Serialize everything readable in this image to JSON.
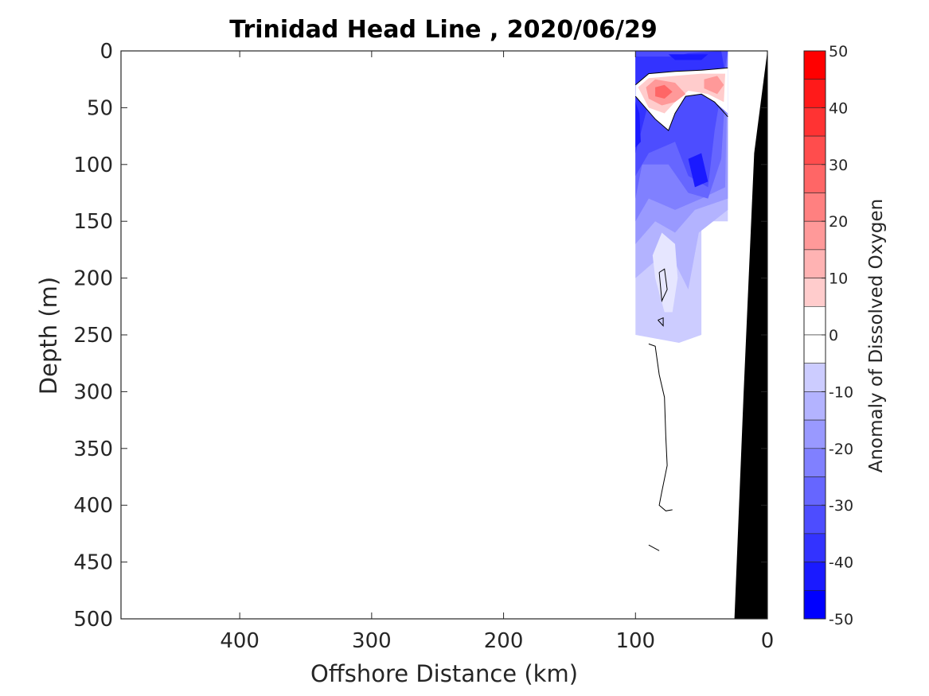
{
  "chart_data": {
    "type": "contour",
    "title": "Trinidad Head Line , 2020/06/29",
    "xlabel": "Offshore Distance (km)",
    "ylabel": "Depth (m)",
    "xlim": [
      490,
      0
    ],
    "ylim": [
      500,
      0
    ],
    "x_reversed": true,
    "y_reversed": true,
    "xticks": [
      400,
      300,
      200,
      100,
      0
    ],
    "yticks": [
      0,
      50,
      100,
      150,
      200,
      250,
      300,
      350,
      400,
      450,
      500
    ],
    "colorbar": {
      "label": "Anomaly of Dissolved Oxygen",
      "range": [
        -50,
        50
      ],
      "ticks": [
        50,
        40,
        30,
        20,
        10,
        0,
        -10,
        -20,
        -30,
        -40,
        -50
      ],
      "levels": [
        50,
        45,
        40,
        35,
        30,
        25,
        20,
        15,
        10,
        5,
        0,
        -5,
        -10,
        -15,
        -20,
        -25,
        -30,
        -35,
        -40,
        -45,
        -50
      ],
      "colors": [
        "#ff0000",
        "#ff1a1a",
        "#ff3333",
        "#ff4d4d",
        "#ff6666",
        "#ff8080",
        "#ff9999",
        "#ffb3b3",
        "#ffcccc",
        "#ffe6e6",
        "#ffffff",
        "#ffffff",
        "#e6e6ff",
        "#ccccff",
        "#b3b3ff",
        "#9999ff",
        "#8080ff",
        "#6666ff",
        "#4d4dff",
        "#3333ff",
        "#1a1aff",
        "#0000ff"
      ]
    },
    "seafloor_color": "#000000",
    "seafloor": [
      {
        "x": 0,
        "depth": 0
      },
      {
        "x": 10,
        "depth": 90
      },
      {
        "x": 18,
        "depth": 300
      },
      {
        "x": 25,
        "depth": 500
      }
    ],
    "data_coverage": [
      {
        "x": 100,
        "depth": 0
      },
      {
        "x": 30,
        "depth": 0
      },
      {
        "x": 30,
        "depth": 150
      },
      {
        "x": 50,
        "depth": 150
      },
      {
        "x": 50,
        "depth": 250
      },
      {
        "x": 67,
        "depth": 250
      },
      {
        "x": 67,
        "depth": 257
      },
      {
        "x": 100,
        "depth": 250
      }
    ],
    "regions": [
      {
        "value": -10,
        "points": [
          {
            "x": 100,
            "depth": 0
          },
          {
            "x": 30,
            "depth": 0
          },
          {
            "x": 30,
            "depth": 150
          },
          {
            "x": 50,
            "depth": 150
          },
          {
            "x": 50,
            "depth": 250
          },
          {
            "x": 67,
            "depth": 257
          },
          {
            "x": 100,
            "depth": 250
          }
        ]
      },
      {
        "value": -15,
        "points": [
          {
            "x": 100,
            "depth": 0
          },
          {
            "x": 30,
            "depth": 0
          },
          {
            "x": 30,
            "depth": 140
          },
          {
            "x": 52,
            "depth": 160
          },
          {
            "x": 60,
            "depth": 210
          },
          {
            "x": 75,
            "depth": 175
          },
          {
            "x": 90,
            "depth": 190
          },
          {
            "x": 100,
            "depth": 200
          }
        ]
      },
      {
        "value": -20,
        "points": [
          {
            "x": 100,
            "depth": 0
          },
          {
            "x": 30,
            "depth": 0
          },
          {
            "x": 30,
            "depth": 130
          },
          {
            "x": 55,
            "depth": 140
          },
          {
            "x": 70,
            "depth": 160
          },
          {
            "x": 85,
            "depth": 150
          },
          {
            "x": 100,
            "depth": 170
          }
        ]
      },
      {
        "value": -25,
        "points": [
          {
            "x": 100,
            "depth": 0
          },
          {
            "x": 30,
            "depth": 0
          },
          {
            "x": 32,
            "depth": 120
          },
          {
            "x": 50,
            "depth": 130
          },
          {
            "x": 70,
            "depth": 140
          },
          {
            "x": 90,
            "depth": 130
          },
          {
            "x": 100,
            "depth": 150
          }
        ]
      },
      {
        "value": -30,
        "points": [
          {
            "x": 100,
            "depth": 0
          },
          {
            "x": 30,
            "depth": 0
          },
          {
            "x": 35,
            "depth": 95
          },
          {
            "x": 45,
            "depth": 130
          },
          {
            "x": 60,
            "depth": 125
          },
          {
            "x": 75,
            "depth": 100
          },
          {
            "x": 95,
            "depth": 100
          },
          {
            "x": 100,
            "depth": 130
          }
        ]
      },
      {
        "value": -35,
        "points": [
          {
            "x": 100,
            "depth": 0
          },
          {
            "x": 30,
            "depth": 0
          },
          {
            "x": 40,
            "depth": 70
          },
          {
            "x": 45,
            "depth": 120
          },
          {
            "x": 60,
            "depth": 110
          },
          {
            "x": 70,
            "depth": 80
          },
          {
            "x": 90,
            "depth": 90
          },
          {
            "x": 100,
            "depth": 110
          }
        ]
      },
      {
        "value": -40,
        "points": [
          {
            "x": 100,
            "depth": 5
          },
          {
            "x": 70,
            "depth": 5
          },
          {
            "x": 60,
            "depth": 2
          },
          {
            "x": 35,
            "depth": 0
          },
          {
            "x": 32,
            "depth": 20
          },
          {
            "x": 60,
            "depth": 40
          },
          {
            "x": 90,
            "depth": 45
          },
          {
            "x": 100,
            "depth": 90
          }
        ]
      },
      {
        "value": -45,
        "points": [
          {
            "x": 100,
            "depth": 45
          },
          {
            "x": 97,
            "depth": 55
          },
          {
            "x": 96,
            "depth": 80
          },
          {
            "x": 100,
            "depth": 85
          }
        ]
      },
      {
        "value": -45,
        "points": [
          {
            "x": 75,
            "depth": 3
          },
          {
            "x": 45,
            "depth": 3
          },
          {
            "x": 50,
            "depth": 8
          },
          {
            "x": 70,
            "depth": 8
          }
        ]
      },
      {
        "value": -45,
        "points": [
          {
            "x": 60,
            "depth": 95
          },
          {
            "x": 50,
            "depth": 90
          },
          {
            "x": 45,
            "depth": 115
          },
          {
            "x": 55,
            "depth": 120
          }
        ]
      },
      {
        "value": 0,
        "points": [
          {
            "x": 100,
            "depth": 30
          },
          {
            "x": 90,
            "depth": 20
          },
          {
            "x": 70,
            "depth": 18
          },
          {
            "x": 50,
            "depth": 17
          },
          {
            "x": 30,
            "depth": 15
          },
          {
            "x": 30,
            "depth": 55
          },
          {
            "x": 40,
            "depth": 45
          },
          {
            "x": 50,
            "depth": 38
          },
          {
            "x": 62,
            "depth": 40
          },
          {
            "x": 70,
            "depth": 55
          },
          {
            "x": 75,
            "depth": 70
          },
          {
            "x": 85,
            "depth": 60
          },
          {
            "x": 100,
            "depth": 40
          }
        ]
      },
      {
        "value": 10,
        "points": [
          {
            "x": 98,
            "depth": 32
          },
          {
            "x": 90,
            "depth": 24
          },
          {
            "x": 70,
            "depth": 22
          },
          {
            "x": 50,
            "depth": 20
          },
          {
            "x": 32,
            "depth": 20
          },
          {
            "x": 33,
            "depth": 45
          },
          {
            "x": 45,
            "depth": 38
          },
          {
            "x": 60,
            "depth": 35
          },
          {
            "x": 70,
            "depth": 45
          },
          {
            "x": 78,
            "depth": 55
          },
          {
            "x": 90,
            "depth": 50
          }
        ]
      },
      {
        "value": 20,
        "points": [
          {
            "x": 92,
            "depth": 32
          },
          {
            "x": 85,
            "depth": 25
          },
          {
            "x": 70,
            "depth": 28
          },
          {
            "x": 62,
            "depth": 38
          },
          {
            "x": 70,
            "depth": 45
          },
          {
            "x": 80,
            "depth": 48
          },
          {
            "x": 90,
            "depth": 42
          }
        ]
      },
      {
        "value": 20,
        "points": [
          {
            "x": 48,
            "depth": 25
          },
          {
            "x": 38,
            "depth": 22
          },
          {
            "x": 33,
            "depth": 30
          },
          {
            "x": 38,
            "depth": 38
          },
          {
            "x": 48,
            "depth": 33
          }
        ]
      },
      {
        "value": 30,
        "points": [
          {
            "x": 85,
            "depth": 32
          },
          {
            "x": 78,
            "depth": 30
          },
          {
            "x": 72,
            "depth": 36
          },
          {
            "x": 78,
            "depth": 42
          },
          {
            "x": 85,
            "depth": 40
          }
        ]
      },
      {
        "value": -5,
        "points": [
          {
            "x": 80,
            "depth": 160
          },
          {
            "x": 70,
            "depth": 170
          },
          {
            "x": 68,
            "depth": 200
          },
          {
            "x": 72,
            "depth": 230
          },
          {
            "x": 78,
            "depth": 230
          },
          {
            "x": 85,
            "depth": 200
          },
          {
            "x": 87,
            "depth": 180
          }
        ]
      }
    ],
    "zero_contours": [
      [
        {
          "x": 100,
          "depth": 30
        },
        {
          "x": 90,
          "depth": 20
        },
        {
          "x": 70,
          "depth": 18
        },
        {
          "x": 50,
          "depth": 17
        },
        {
          "x": 30,
          "depth": 15
        }
      ],
      [
        {
          "x": 100,
          "depth": 40
        },
        {
          "x": 85,
          "depth": 60
        },
        {
          "x": 75,
          "depth": 70
        },
        {
          "x": 70,
          "depth": 55
        },
        {
          "x": 62,
          "depth": 40
        },
        {
          "x": 50,
          "depth": 38
        },
        {
          "x": 40,
          "depth": 45
        },
        {
          "x": 30,
          "depth": 58
        }
      ],
      [
        {
          "x": 82,
          "depth": 195
        },
        {
          "x": 78,
          "depth": 192
        },
        {
          "x": 76,
          "depth": 210
        },
        {
          "x": 80,
          "depth": 220
        },
        {
          "x": 82,
          "depth": 195
        }
      ],
      [
        {
          "x": 83,
          "depth": 237
        },
        {
          "x": 79,
          "depth": 235
        },
        {
          "x": 79,
          "depth": 242
        },
        {
          "x": 83,
          "depth": 237
        }
      ],
      [
        {
          "x": 90,
          "depth": 258
        },
        {
          "x": 85,
          "depth": 260
        },
        {
          "x": 82,
          "depth": 285
        },
        {
          "x": 78,
          "depth": 305
        },
        {
          "x": 77,
          "depth": 340
        },
        {
          "x": 76,
          "depth": 365
        },
        {
          "x": 80,
          "depth": 388
        },
        {
          "x": 82,
          "depth": 400
        },
        {
          "x": 77,
          "depth": 405
        },
        {
          "x": 72,
          "depth": 404
        }
      ],
      [
        {
          "x": 90,
          "depth": 435
        },
        {
          "x": 82,
          "depth": 440
        }
      ]
    ]
  }
}
